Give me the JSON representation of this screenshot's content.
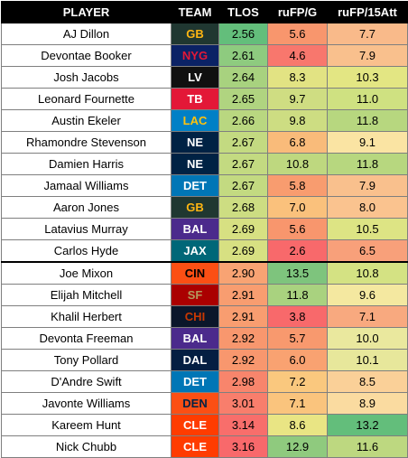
{
  "headers": [
    "PLAYER",
    "TEAM",
    "TLOS",
    "ruFP/G",
    "ruFP/15Att"
  ],
  "rows": [
    {
      "player": "AJ Dillon",
      "team": "GB",
      "team_bg": "#203731",
      "team_fg": "#FFB612",
      "tlos": "2.56",
      "tlos_bg": "#63be7b",
      "fpg": "5.6",
      "fpg_bg": "#f8966d",
      "fp15": "7.7",
      "fp15_bg": "#f9ba8a"
    },
    {
      "player": "Devontae Booker",
      "team": "NYG",
      "team_bg": "#0B2265",
      "team_fg": "#E31837",
      "tlos": "2.61",
      "tlos_bg": "#8ecb7f",
      "fpg": "4.6",
      "fpg_bg": "#f8776d",
      "fp15": "7.9",
      "fp15_bg": "#f9c08d"
    },
    {
      "player": "Josh Jacobs",
      "team": "LV",
      "team_bg": "#101010",
      "team_fg": "#ffffff",
      "tlos": "2.64",
      "tlos_bg": "#a8d27f",
      "fpg": "8.3",
      "fpg_bg": "#e2e383",
      "fp15": "10.3",
      "fp15_bg": "#e3e683"
    },
    {
      "player": "Leonard Fournette",
      "team": "TB",
      "team_bg": "#E31837",
      "team_fg": "#ffffff",
      "tlos": "2.65",
      "tlos_bg": "#b0d480",
      "fpg": "9.7",
      "fpg_bg": "#cfdd82",
      "fp15": "11.0",
      "fp15_bg": "#cfe181"
    },
    {
      "player": "Austin Ekeler",
      "team": "LAC",
      "team_bg": "#0080C6",
      "team_fg": "#FFC20E",
      "tlos": "2.66",
      "tlos_bg": "#b9d780",
      "fpg": "9.8",
      "fpg_bg": "#cddd82",
      "fp15": "11.8",
      "fp15_bg": "#b7d77f"
    },
    {
      "player": "Rhamondre Stevenson",
      "team": "NE",
      "team_bg": "#002244",
      "team_fg": "#ffffff",
      "tlos": "2.67",
      "tlos_bg": "#c3da81",
      "fpg": "6.8",
      "fpg_bg": "#f9bb7a",
      "fp15": "9.1",
      "fp15_bg": "#fae4a3"
    },
    {
      "player": "Damien Harris",
      "team": "NE",
      "team_bg": "#002244",
      "team_fg": "#ffffff",
      "tlos": "2.67",
      "tlos_bg": "#c3da81",
      "fpg": "10.8",
      "fpg_bg": "#bed87f",
      "fp15": "11.8",
      "fp15_bg": "#b7d77f"
    },
    {
      "player": "Jamaal Williams",
      "team": "DET",
      "team_bg": "#0076B6",
      "team_fg": "#ffffff",
      "tlos": "2.67",
      "tlos_bg": "#c3da81",
      "fpg": "5.8",
      "fpg_bg": "#f89c6f",
      "fp15": "7.9",
      "fp15_bg": "#f9c08d"
    },
    {
      "player": "Aaron Jones",
      "team": "GB",
      "team_bg": "#203731",
      "team_fg": "#FFB612",
      "tlos": "2.68",
      "tlos_bg": "#cddd82",
      "fpg": "7.0",
      "fpg_bg": "#fac17c",
      "fp15": "8.0",
      "fp15_bg": "#fac38f"
    },
    {
      "player": "Latavius Murray",
      "team": "BAL",
      "team_bg": "#4B2A8C",
      "team_fg": "#ffffff",
      "tlos": "2.69",
      "tlos_bg": "#d7e082",
      "fpg": "5.6",
      "fpg_bg": "#f8966d",
      "fp15": "10.5",
      "fp15_bg": "#dde484"
    },
    {
      "player": "Carlos Hyde",
      "team": "JAX",
      "team_bg": "#006778",
      "team_fg": "#ffffff",
      "tlos": "2.69",
      "tlos_bg": "#d7e082",
      "fpg": "2.6",
      "fpg_bg": "#f8696b",
      "fp15": "6.5",
      "fp15_bg": "#f8a07a"
    },
    {
      "player": "Joe Mixon",
      "team": "CIN",
      "team_bg": "#FB4F14",
      "team_fg": "#000000",
      "tlos": "2.90",
      "tlos_bg": "#f8a373",
      "fpg": "13.5",
      "fpg_bg": "#7ec47d",
      "fp15": "10.8",
      "fp15_bg": "#d4e283"
    },
    {
      "player": "Elijah Mitchell",
      "team": "SF",
      "team_bg": "#AA0000",
      "team_fg": "#B3995D",
      "tlos": "2.91",
      "tlos_bg": "#f89d70",
      "fpg": "11.8",
      "fpg_bg": "#a9d27f",
      "fp15": "9.6",
      "fp15_bg": "#f4e8a0"
    },
    {
      "player": "Khalil Herbert",
      "team": "CHI",
      "team_bg": "#0B162A",
      "team_fg": "#C83803",
      "tlos": "2.91",
      "tlos_bg": "#f89d70",
      "fpg": "3.8",
      "fpg_bg": "#f8696b",
      "fp15": "7.1",
      "fp15_bg": "#f8a97f"
    },
    {
      "player": "Devonta Freeman",
      "team": "BAL",
      "team_bg": "#4B2A8C",
      "team_fg": "#ffffff",
      "tlos": "2.92",
      "tlos_bg": "#f8976e",
      "fpg": "5.7",
      "fpg_bg": "#f8996e",
      "fp15": "10.0",
      "fp15_bg": "#eae89e"
    },
    {
      "player": "Tony Pollard",
      "team": "DAL",
      "team_bg": "#041E42",
      "team_fg": "#ffffff",
      "tlos": "2.92",
      "tlos_bg": "#f8976e",
      "fpg": "6.0",
      "fpg_bg": "#f9a271",
      "fp15": "10.1",
      "fp15_bg": "#e7e79b"
    },
    {
      "player": "D'Andre Swift",
      "team": "DET",
      "team_bg": "#0076B6",
      "team_fg": "#ffffff",
      "tlos": "2.98",
      "tlos_bg": "#f8856c",
      "fpg": "7.2",
      "fpg_bg": "#fac87e",
      "fp15": "8.5",
      "fp15_bg": "#fad098"
    },
    {
      "player": "Javonte Williams",
      "team": "DEN",
      "team_bg": "#FB4F14",
      "team_fg": "#002244",
      "tlos": "3.01",
      "tlos_bg": "#f87e6c",
      "fpg": "7.1",
      "fpg_bg": "#fac47d",
      "fp15": "8.9",
      "fp15_bg": "#fadba0"
    },
    {
      "player": "Kareem Hunt",
      "team": "CLE",
      "team_bg": "#FF3C00",
      "team_fg": "#ffffff",
      "tlos": "3.14",
      "tlos_bg": "#f86e6b",
      "fpg": "8.6",
      "fpg_bg": "#e9e584",
      "fp15": "13.2",
      "fp15_bg": "#63be7b"
    },
    {
      "player": "Nick Chubb",
      "team": "CLE",
      "team_bg": "#FF3C00",
      "team_fg": "#ffffff",
      "tlos": "3.16",
      "tlos_bg": "#f8696b",
      "fpg": "12.9",
      "fpg_bg": "#8fca7e",
      "fp15": "11.6",
      "fp15_bg": "#bdd880"
    }
  ],
  "group_break_after": 10
}
